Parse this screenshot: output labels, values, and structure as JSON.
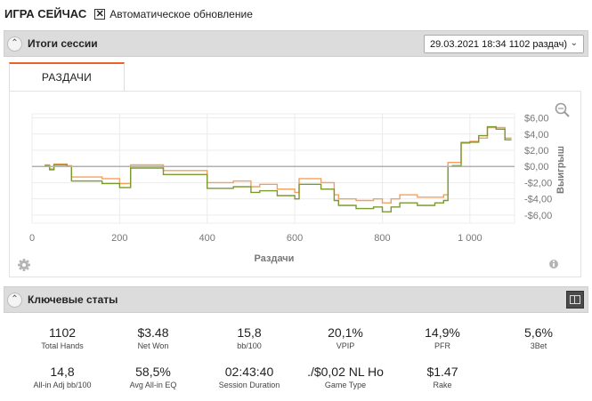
{
  "topbar": {
    "title": "ИГРА СЕЙЧАС",
    "auto_update_checked": true,
    "auto_update_label": "Автоматическое обновление"
  },
  "session_section": {
    "title": "Итоги сессии",
    "session_selected": "29.03.2021 18:34 1102 раздач)"
  },
  "tabs": [
    {
      "label": "РАЗДАЧИ",
      "active": true
    }
  ],
  "chart_data": {
    "type": "line",
    "xlabel": "Раздачи",
    "ylabel": "Выигрыш",
    "xlim": [
      0,
      1102
    ],
    "ylim": [
      -7,
      6.5
    ],
    "x_ticks": [
      0,
      200,
      400,
      600,
      800,
      1000
    ],
    "x_tick_labels": [
      "0",
      "200",
      "400",
      "600",
      "800",
      "1 000"
    ],
    "y_ticks": [
      6,
      4,
      2,
      0,
      -2,
      -4,
      -6
    ],
    "y_tick_labels": [
      "$6,00",
      "$4,00",
      "$2,00",
      "$0,00",
      "-$2,00",
      "-$4,00",
      "-$6,00"
    ],
    "grid": true,
    "series": [
      {
        "color": "#f5a05a",
        "x": [
          0,
          30,
          40,
          50,
          80,
          90,
          100,
          160,
          200,
          220,
          225,
          240,
          300,
          400,
          460,
          500,
          520,
          560,
          600,
          610,
          620,
          660,
          690,
          700,
          740,
          780,
          800,
          820,
          840,
          880,
          920,
          940,
          950,
          960,
          980,
          1000,
          1020,
          1040,
          1060,
          1080,
          1095
        ],
        "y": [
          0.0,
          0.2,
          -0.3,
          0.3,
          0.1,
          -1.3,
          -1.3,
          -1.5,
          -2.1,
          -2.1,
          0.2,
          0.2,
          -0.5,
          -2.0,
          -1.8,
          -2.5,
          -2.2,
          -2.8,
          -3.2,
          -1.5,
          -1.5,
          -2.0,
          -3.5,
          -4.0,
          -4.2,
          -4.0,
          -4.5,
          -4.0,
          -3.5,
          -3.8,
          -3.8,
          -3.5,
          0.5,
          0.5,
          3.0,
          3.1,
          3.5,
          4.8,
          4.8,
          3.5,
          3.5
        ]
      },
      {
        "color": "#7a9a2e",
        "x": [
          0,
          30,
          40,
          50,
          80,
          90,
          100,
          160,
          200,
          220,
          225,
          240,
          300,
          400,
          460,
          500,
          520,
          560,
          600,
          610,
          620,
          660,
          690,
          700,
          740,
          780,
          800,
          820,
          840,
          880,
          920,
          940,
          950,
          960,
          980,
          1000,
          1020,
          1040,
          1060,
          1080,
          1095
        ],
        "y": [
          0.0,
          0.1,
          -0.4,
          0.2,
          0.0,
          -1.8,
          -1.8,
          -2.1,
          -2.6,
          -2.6,
          -0.2,
          -0.2,
          -1.0,
          -2.7,
          -2.5,
          -3.2,
          -3.0,
          -3.6,
          -4.0,
          -2.2,
          -2.2,
          -2.8,
          -4.2,
          -4.8,
          -5.2,
          -5.0,
          -5.6,
          -5.0,
          -4.5,
          -4.8,
          -4.5,
          -4.2,
          0.0,
          0.1,
          2.9,
          3.0,
          3.8,
          4.9,
          4.6,
          3.3,
          3.3
        ]
      },
      {
        "color": "#b0b0b0",
        "x": [
          0,
          1102
        ],
        "y": [
          0,
          0
        ]
      }
    ]
  },
  "stats_section": {
    "title": "Ключевые статы",
    "items": [
      {
        "value": "1102",
        "label": "Total Hands"
      },
      {
        "value": "$3.48",
        "label": "Net Won"
      },
      {
        "value": "15,8",
        "label": "bb/100"
      },
      {
        "value": "20,1%",
        "label": "VPIP"
      },
      {
        "value": "14,9%",
        "label": "PFR"
      },
      {
        "value": "5,6%",
        "label": "3Bet"
      },
      {
        "value": "14,8",
        "label": "All-in Adj bb/100"
      },
      {
        "value": "58,5%",
        "label": "Avg All-in EQ"
      },
      {
        "value": "02:43:40",
        "label": "Session Duration"
      },
      {
        "value": "./$0,02 NL Ho",
        "label": "Game Type"
      },
      {
        "value": "$1.47",
        "label": "Rake"
      }
    ]
  }
}
